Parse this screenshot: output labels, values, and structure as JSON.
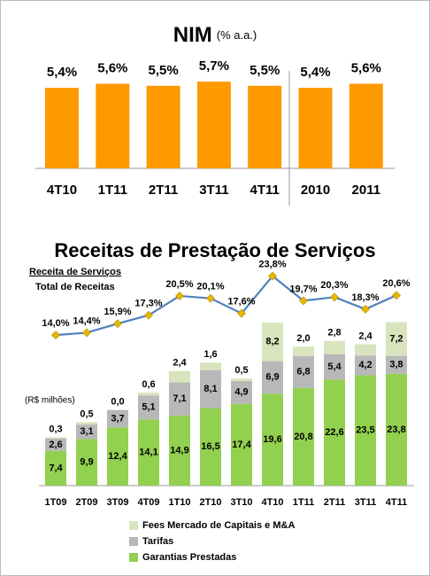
{
  "chart_data": [
    {
      "type": "bar",
      "title": "NIM",
      "subtitle": "(% a.a.)",
      "categories": [
        "4T10",
        "1T11",
        "2T11",
        "3T11",
        "4T11",
        "2010",
        "2011"
      ],
      "values": [
        5.4,
        5.6,
        5.5,
        5.7,
        5.5,
        5.4,
        5.6
      ],
      "value_labels": [
        "5,4%",
        "5,6%",
        "5,5%",
        "5,7%",
        "5,5%",
        "5,4%",
        "5,6%"
      ],
      "color": "#ff9900",
      "ylim": [
        1.5,
        6.5
      ]
    },
    {
      "type": "combo",
      "title": "Receitas de Prestação de Serviços",
      "annotation": "(R$ milhões)",
      "categories": [
        "1T09",
        "2T09",
        "3T09",
        "4T09",
        "1T10",
        "2T10",
        "3T10",
        "4T10",
        "1T11",
        "2T11",
        "3T11",
        "4T11"
      ],
      "stacked": true,
      "legend": "bottom",
      "ylim": [
        0,
        50
      ],
      "y2lim": [
        -11,
        28
      ],
      "series": [
        {
          "name": "Garantias Prestadas",
          "color": "#92d050",
          "values": [
            7.4,
            9.9,
            12.4,
            14.1,
            14.9,
            16.5,
            17.4,
            19.6,
            20.8,
            22.6,
            23.5,
            23.8
          ],
          "value_labels": [
            "7,4",
            "9,9",
            "12,4",
            "14,1",
            "14,9",
            "16,5",
            "17,4",
            "19,6",
            "20,8",
            "22,6",
            "23,5",
            "23,8"
          ]
        },
        {
          "name": "Tarifas",
          "color": "#b8b8b8",
          "values": [
            2.6,
            3.1,
            3.7,
            5.1,
            7.1,
            8.1,
            4.9,
            6.9,
            6.8,
            5.4,
            4.2,
            3.8
          ],
          "value_labels": [
            "2,6",
            "3,1",
            "3,7",
            "5,1",
            "7,1",
            "8,1",
            "4,9",
            "6,9",
            "6,8",
            "5,4",
            "4,2",
            "3,8"
          ]
        },
        {
          "name": "Fees Mercado de Capitais e M&A",
          "color": "#d7e4bd",
          "values": [
            0.3,
            0.5,
            0.0,
            0.6,
            2.4,
            1.6,
            0.5,
            8.2,
            2.0,
            2.8,
            2.4,
            7.2
          ],
          "value_labels": [
            "0,3",
            "0,5",
            "0,0",
            "0,6",
            "2,4",
            "1,6",
            "0,5",
            "8,2",
            "2,0",
            "2,8",
            "2,4",
            "7,2"
          ]
        },
        {
          "name": "Receita de Serviços",
          "denominator": "Total de Receitas",
          "type": "line",
          "axis": "y2",
          "color": "#4f81bd",
          "marker_color": "#e6b800",
          "values": [
            14.0,
            14.4,
            15.9,
            17.3,
            20.5,
            20.1,
            17.6,
            23.8,
            19.7,
            20.3,
            18.3,
            20.6
          ],
          "value_labels": [
            "14,0%",
            "14,4%",
            "15,9%",
            "17,3%",
            "20,5%",
            "20,1%",
            "17,6%",
            "23,8%",
            "19,7%",
            "20,3%",
            "18,3%",
            "20,6%"
          ]
        }
      ]
    }
  ]
}
